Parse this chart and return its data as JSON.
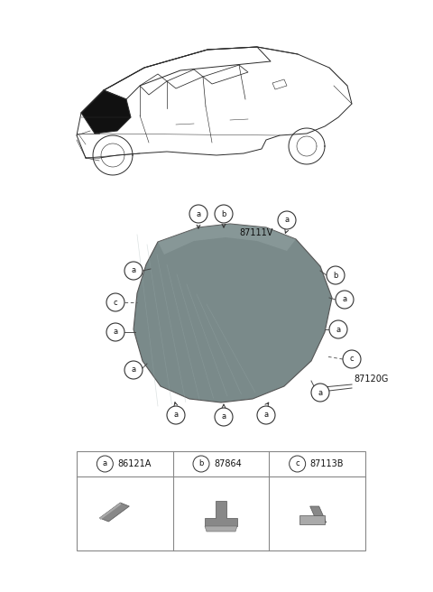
{
  "bg_color": "#ffffff",
  "glass_color": "#7d8d8d",
  "glass_edge_color": "#444444",
  "callout_edge": "#333333",
  "legend": [
    {
      "letter": "a",
      "code": "86121A"
    },
    {
      "letter": "b",
      "code": "87864"
    },
    {
      "letter": "c",
      "code": "87113B"
    }
  ],
  "label_87111V": "87111V",
  "label_87120G": "87120G"
}
